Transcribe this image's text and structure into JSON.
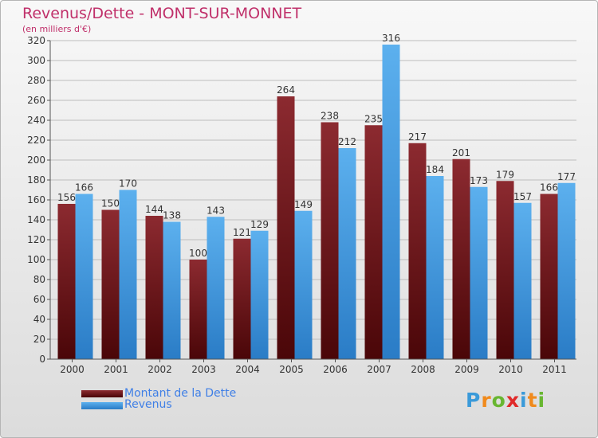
{
  "title": "Revenus/Dette - MONT-SUR-MONNET",
  "subtitle": "(en milliers d'€)",
  "logo": {
    "text": "Proxiti",
    "letters": [
      {
        "ch": "P",
        "color": "#3a9ad9"
      },
      {
        "ch": "r",
        "color": "#f08a1c"
      },
      {
        "ch": "o",
        "color": "#68b631"
      },
      {
        "ch": "x",
        "color": "#e02a2a"
      },
      {
        "ch": "i",
        "color": "#3a9ad9"
      },
      {
        "ch": "t",
        "color": "#f08a1c"
      },
      {
        "ch": "i",
        "color": "#68b631"
      }
    ]
  },
  "colors": {
    "debt": "#7b1a22",
    "revenue": "#4fa3e6",
    "label": "#333333",
    "grid": "#bdbdbd"
  },
  "legend": {
    "debt_label": "Montant de la Dette",
    "revenue_label": "Revenus"
  },
  "chart_data": {
    "type": "bar",
    "categories": [
      "2000",
      "2001",
      "2002",
      "2003",
      "2004",
      "2005",
      "2006",
      "2007",
      "2008",
      "2009",
      "2010",
      "2011"
    ],
    "series": [
      {
        "name": "Montant de la Dette",
        "values": [
          156,
          150,
          144,
          100,
          121,
          264,
          238,
          235,
          217,
          201,
          179,
          166
        ]
      },
      {
        "name": "Revenus",
        "values": [
          166,
          170,
          138,
          143,
          129,
          149,
          212,
          316,
          184,
          173,
          157,
          177
        ]
      }
    ],
    "yticks": [
      0,
      20,
      40,
      60,
      80,
      100,
      120,
      140,
      160,
      180,
      200,
      220,
      240,
      260,
      280,
      300,
      320
    ],
    "ylim": [
      0,
      320
    ],
    "grid": true
  }
}
